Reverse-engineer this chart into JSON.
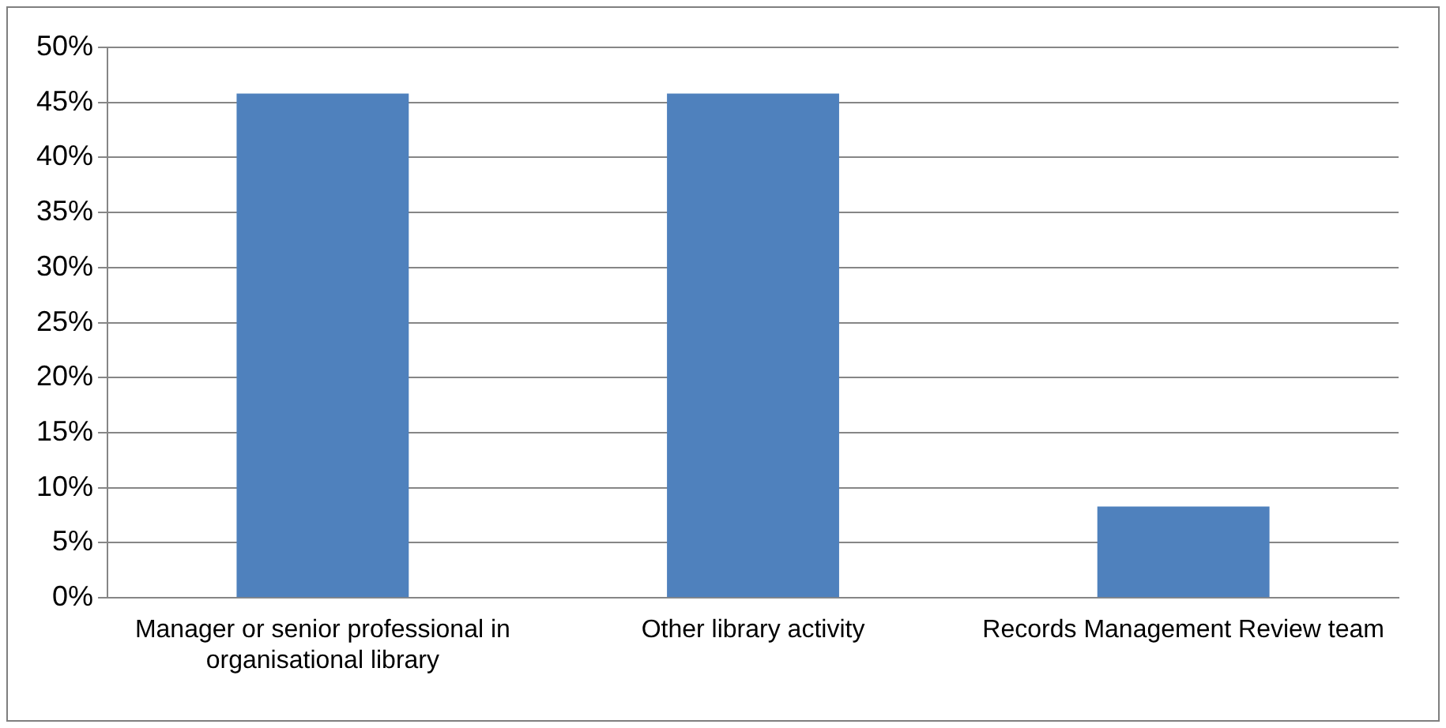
{
  "chart_data": {
    "type": "bar",
    "categories": [
      "Manager or senior professional in organisational library",
      "Other library activity",
      "Records Management Review team"
    ],
    "values": [
      45.8,
      45.8,
      8.3
    ],
    "color": "#4f81bd",
    "ylim": [
      0,
      50
    ],
    "yticks": [
      {
        "value": 0,
        "label": "0%"
      },
      {
        "value": 5,
        "label": "5%"
      },
      {
        "value": 10,
        "label": "10%"
      },
      {
        "value": 15,
        "label": "15%"
      },
      {
        "value": 20,
        "label": "20%"
      },
      {
        "value": 25,
        "label": "25%"
      },
      {
        "value": 30,
        "label": "30%"
      },
      {
        "value": 35,
        "label": "35%"
      },
      {
        "value": 40,
        "label": "40%"
      },
      {
        "value": 45,
        "label": "45%"
      },
      {
        "value": 50,
        "label": "50%"
      }
    ],
    "grid": "y",
    "legend": false
  }
}
